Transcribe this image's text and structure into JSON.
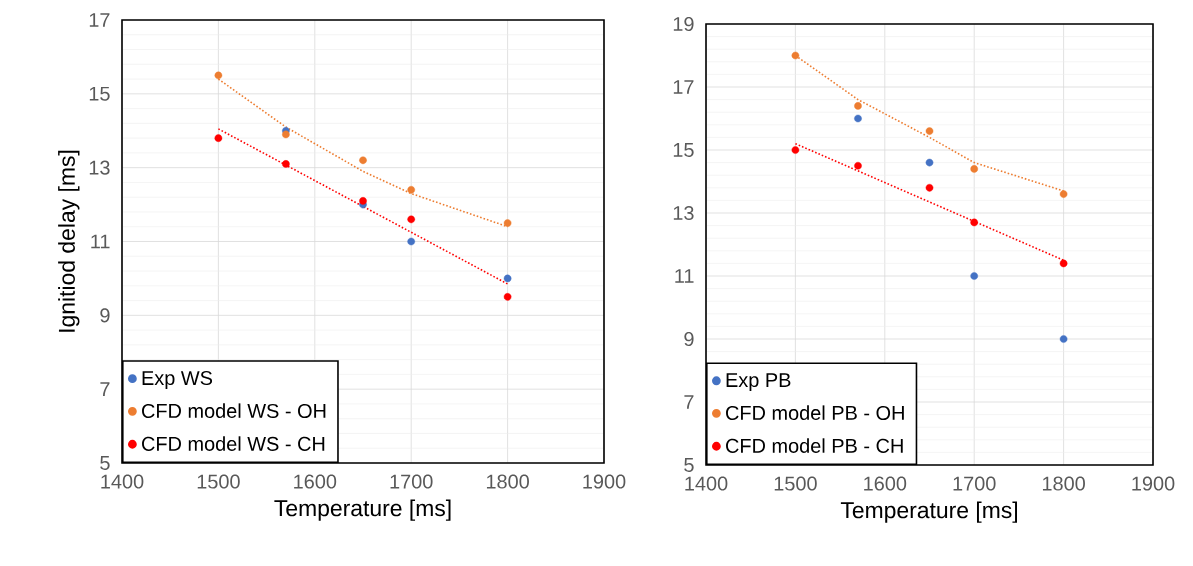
{
  "chart_data": [
    {
      "type": "scatter",
      "xlabel": "Temperature [ms]",
      "ylabel": "Ignitiod delay [ms]",
      "xlim": [
        1400,
        1900
      ],
      "xticks": [
        1400,
        1500,
        1600,
        1700,
        1800,
        1900
      ],
      "ylim": [
        5,
        17
      ],
      "yticks": [
        5,
        7,
        9,
        11,
        13,
        15,
        17
      ],
      "grid": true,
      "legend": "bottom left",
      "series": [
        {
          "name": "Exp WS",
          "color": "#4472c4",
          "marker": "circle",
          "x": [
            1570,
            1650,
            1700,
            1800
          ],
          "values": [
            14.0,
            12.0,
            11.0,
            10.0
          ]
        },
        {
          "name": "CFD model WS - OH",
          "color": "#ed7d31",
          "marker": "circle",
          "x": [
            1500,
            1570,
            1650,
            1700,
            1800
          ],
          "values": [
            15.5,
            13.9,
            13.2,
            12.4,
            11.5
          ]
        },
        {
          "name": "CFD model WS - CH",
          "color": "#ff0000",
          "marker": "circle",
          "x": [
            1500,
            1570,
            1650,
            1700,
            1800
          ],
          "values": [
            13.8,
            13.1,
            12.1,
            11.6,
            9.5
          ]
        },
        {
          "type": "line",
          "color": "#ed7d31",
          "line_style": "dotted",
          "marker": "none",
          "x": [
            1500,
            1570,
            1650,
            1700,
            1800
          ],
          "values": [
            15.4,
            14.1,
            12.9,
            12.3,
            11.4
          ]
        },
        {
          "type": "line",
          "color": "#ff0000",
          "line_style": "dotted",
          "marker": "none",
          "x": [
            1500,
            1800
          ],
          "values": [
            14.05,
            9.85
          ]
        }
      ]
    },
    {
      "type": "scatter",
      "xlabel": "Temperature [ms]",
      "xlim": [
        1400,
        1900
      ],
      "xticks": [
        1400,
        1500,
        1600,
        1700,
        1800,
        1900
      ],
      "ylim": [
        5,
        19
      ],
      "yticks": [
        5,
        7,
        9,
        11,
        13,
        15,
        17,
        19
      ],
      "grid": true,
      "legend": "bottom left",
      "series": [
        {
          "name": "Exp PB",
          "color": "#4472c4",
          "marker": "circle",
          "x": [
            1570,
            1650,
            1700,
            1800
          ],
          "values": [
            16.0,
            14.6,
            11.0,
            9.0
          ]
        },
        {
          "name": "CFD model PB - OH",
          "color": "#ed7d31",
          "marker": "circle",
          "x": [
            1500,
            1570,
            1650,
            1700,
            1800
          ],
          "values": [
            18.0,
            16.4,
            15.6,
            14.4,
            13.6
          ]
        },
        {
          "name": "CFD model PB - CH",
          "color": "#ff0000",
          "marker": "circle",
          "x": [
            1500,
            1570,
            1650,
            1700,
            1800
          ],
          "values": [
            15.0,
            14.5,
            13.8,
            12.7,
            11.4
          ]
        },
        {
          "type": "line",
          "color": "#ed7d31",
          "line_style": "dotted",
          "marker": "none",
          "x": [
            1500,
            1570,
            1650,
            1700,
            1800
          ],
          "values": [
            18.0,
            16.6,
            15.4,
            14.6,
            13.7
          ]
        },
        {
          "type": "line",
          "color": "#ff0000",
          "line_style": "dotted",
          "marker": "none",
          "x": [
            1500,
            1800
          ],
          "values": [
            15.2,
            11.5
          ]
        }
      ]
    }
  ]
}
